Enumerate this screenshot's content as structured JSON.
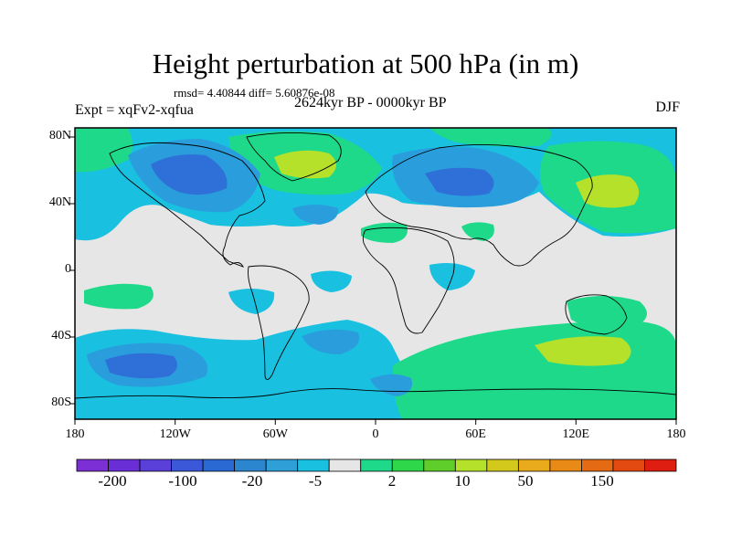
{
  "title": "Height perturbation at 500 hPa (in m)",
  "subtitle_stats": "rmsd= 4.40844  diff= 5.60876e-08",
  "period": "2624kyr BP - 0000kyr BP",
  "experiment": "Expt = xqFv2-xqfua",
  "season": "DJF",
  "axes": {
    "x_ticks": [
      "180",
      "120W",
      "60W",
      "0",
      "60E",
      "120E",
      "180"
    ],
    "y_ticks": [
      "80N",
      "40N",
      "0",
      "40S",
      "80S"
    ]
  },
  "colorbar": {
    "labels": [
      "-200",
      "-100",
      "-20",
      "-5",
      "2",
      "10",
      "50",
      "150"
    ],
    "colors": [
      "#7d2fd6",
      "#6a2ed6",
      "#5a3fd8",
      "#3a58d8",
      "#2a68d4",
      "#2b86cf",
      "#2f9fd8",
      "#19c0e0",
      "#e6e6e6",
      "#1fd98a",
      "#2ed64a",
      "#5fcd2a",
      "#b6e12a",
      "#d3c91d",
      "#e9aa1b",
      "#ea8a16",
      "#e56a14",
      "#e24a12",
      "#dd1e10"
    ]
  },
  "field_colors": {
    "neutral": "#e6e6e6",
    "light_blue": "#19c0e0",
    "mid_blue": "#2a9edc",
    "dark_blue": "#2f6fd8",
    "green": "#1fd98a",
    "yellow_green": "#b6e12a"
  }
}
